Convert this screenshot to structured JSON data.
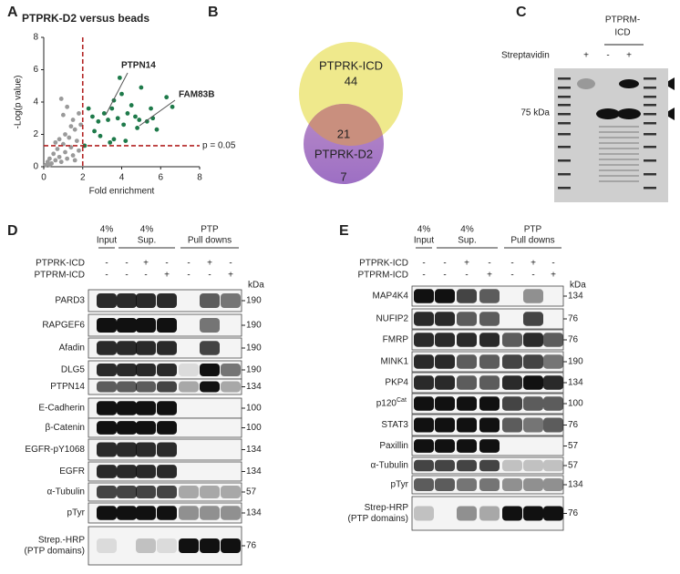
{
  "chart_data": {
    "type": "scatter",
    "title": "PTPRK-D2 versus beads",
    "xlabel": "Fold enrichment",
    "ylabel": "-Log(p value)",
    "xlim": [
      0,
      8
    ],
    "ylim": [
      0,
      8
    ],
    "xticks": [
      0,
      2,
      4,
      6,
      8
    ],
    "yticks": [
      0,
      2,
      4,
      6,
      8
    ],
    "vline": 2,
    "hline": 1.3,
    "hline_label": "p = 0.05",
    "annotations": [
      "PTPN14",
      "FAM83B"
    ],
    "series": [
      {
        "color": "#9a9a9a",
        "x": [
          0.1,
          0.2,
          0.3,
          0.4,
          0.5,
          0.6,
          0.7,
          0.8,
          0.9,
          1.0,
          1.1,
          1.2,
          1.3,
          1.4,
          1.5,
          1.6,
          1.7,
          1.8,
          1.9,
          0.9,
          1.0,
          1.2,
          1.5,
          1.1,
          0.6,
          1.8,
          1.4,
          0.3,
          0.8,
          1.6
        ],
        "values": [
          0.1,
          0.3,
          0.5,
          0.2,
          0.8,
          0.4,
          1.1,
          0.6,
          0.3,
          1.4,
          0.9,
          0.5,
          1.8,
          1.2,
          0.7,
          2.3,
          1.6,
          1.0,
          2.6,
          4.2,
          3.2,
          3.7,
          2.9,
          2.0,
          1.5,
          3.3,
          2.5,
          0.1,
          1.7,
          0.4
        ]
      },
      {
        "color": "#1e7a4a",
        "x": [
          2.1,
          2.3,
          2.5,
          2.8,
          3.1,
          3.3,
          3.5,
          3.6,
          3.8,
          4.0,
          4.1,
          4.3,
          4.5,
          4.7,
          4.9,
          5.0,
          5.3,
          5.5,
          5.6,
          5.8,
          6.3,
          6.6,
          3.4,
          3.6,
          4.2,
          2.6,
          2.9,
          3.9,
          4.8
        ],
        "values": [
          1.3,
          3.6,
          3.1,
          2.8,
          3.3,
          2.9,
          3.6,
          4.1,
          3.0,
          4.5,
          2.6,
          3.3,
          3.8,
          3.1,
          2.9,
          4.9,
          2.8,
          3.6,
          3.0,
          2.3,
          4.3,
          3.7,
          1.5,
          1.7,
          1.6,
          2.2,
          1.9,
          5.5,
          2.4
        ]
      }
    ]
  },
  "panel_labels": [
    "A",
    "B",
    "C",
    "D",
    "E"
  ],
  "venn": {
    "outer_label": "PTPRK-ICD",
    "outer_only": "44",
    "overlap": "21",
    "inner_label": "PTPRK-D2",
    "inner_only": "7"
  },
  "gel": {
    "header": [
      "PTPRM-",
      "ICD"
    ],
    "row_label": "Streptavidin",
    "signs": [
      "+",
      "-",
      "+"
    ],
    "marker": "75 kDa"
  },
  "panel_d": {
    "groups": [
      [
        "4%",
        "Input"
      ],
      [
        "4%",
        "Sup."
      ],
      [
        "PTP",
        "Pull downs"
      ]
    ],
    "conditions": [
      {
        "name": "PTPRK-ICD",
        "signs": [
          "-",
          "-",
          "+",
          "-",
          "-",
          "+",
          "-"
        ]
      },
      {
        "name": "PTPRM-ICD",
        "signs": [
          "-",
          "-",
          "-",
          "+",
          "-",
          "-",
          "+"
        ]
      }
    ],
    "unit": "kDa",
    "rows": [
      {
        "label": [
          "PARD3"
        ],
        "marker": "190"
      },
      {
        "label": [
          "RAPGEF6"
        ],
        "marker": "190"
      },
      {
        "label": [
          "Afadin"
        ],
        "marker": "190"
      },
      {
        "label": [
          "DLG5"
        ],
        "marker": "190"
      },
      {
        "label": [
          "PTPN14"
        ],
        "marker": "134"
      },
      {
        "label": [
          "E-Cadherin"
        ],
        "marker": "100"
      },
      {
        "label": [
          "β-Catenin"
        ],
        "marker": "100"
      },
      {
        "label": [
          "EGFR-pY1068"
        ],
        "marker": "134"
      },
      {
        "label": [
          "EGFR"
        ],
        "marker": "134"
      },
      {
        "label": [
          "α-Tubulin"
        ],
        "marker": "57"
      },
      {
        "label": [
          "pTyr"
        ],
        "marker": "134"
      },
      {
        "label": [
          "Strep.-HRP",
          "(PTP domains)"
        ],
        "marker": "76"
      }
    ]
  },
  "panel_e": {
    "groups": [
      [
        "4%",
        "Input"
      ],
      [
        "4%",
        "Sup."
      ],
      [
        "PTP",
        "Pull downs"
      ]
    ],
    "conditions": [
      {
        "name": "PTPRK-ICD",
        "signs": [
          "-",
          "-",
          "+",
          "-",
          "-",
          "+",
          "-"
        ]
      },
      {
        "name": "PTPRM-ICD",
        "signs": [
          "-",
          "-",
          "-",
          "+",
          "-",
          "-",
          "+"
        ]
      }
    ],
    "unit": "kDa",
    "rows": [
      {
        "label": [
          "MAP4K4"
        ],
        "marker": "134"
      },
      {
        "label": [
          "NUFIP2"
        ],
        "marker": "76"
      },
      {
        "label": [
          "FMRP"
        ],
        "marker": "76"
      },
      {
        "label": [
          "MINK1"
        ],
        "marker": "190"
      },
      {
        "label": [
          "PKP4"
        ],
        "marker": "134"
      },
      {
        "label": [
          "p120"
        ],
        "label_sup": "Cat",
        "marker": "100"
      },
      {
        "label": [
          "STAT3"
        ],
        "marker": "76"
      },
      {
        "label": [
          "Paxillin"
        ],
        "marker": "57"
      },
      {
        "label": [
          "α-Tubulin"
        ],
        "marker": "57"
      },
      {
        "label": [
          "pTyr"
        ],
        "marker": "134"
      },
      {
        "label": [
          "Strep-HRP",
          "(PTP domains)"
        ],
        "marker": "76"
      }
    ]
  }
}
